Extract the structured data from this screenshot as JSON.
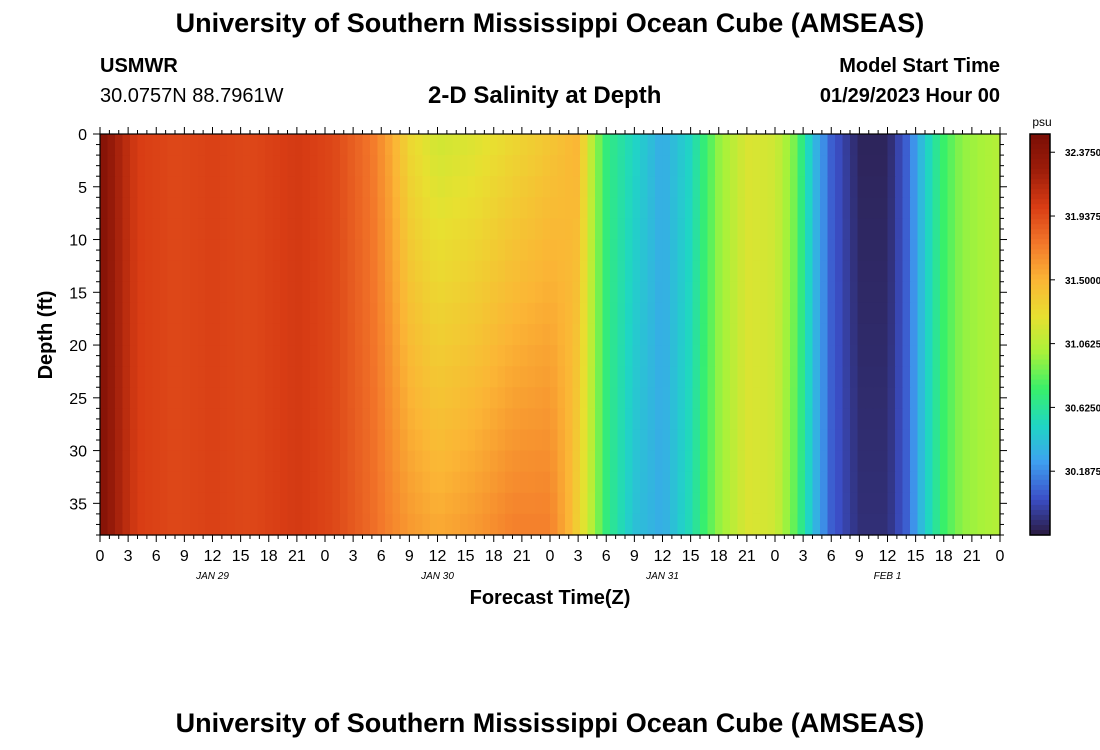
{
  "header": {
    "title": "University of Southern Mississippi Ocean Cube (AMSEAS)",
    "station_name": "USMWR",
    "station_coords": "30.0757N  88.7961W",
    "plot_title": "2-D Salinity at Depth",
    "model_start_label": "Model Start Time",
    "model_start_value": "01/29/2023 Hour 00"
  },
  "footer": {
    "title": "University of Southern Mississippi Ocean Cube (AMSEAS)"
  },
  "colors": {
    "palette": [
      "#2a1a40",
      "#3b4fc8",
      "#3ea0f0",
      "#1fd6c4",
      "#38f06a",
      "#a8f23a",
      "#e8e030",
      "#fbb535",
      "#f3772a",
      "#d83c14",
      "#9c1d0a",
      "#7a0e05"
    ]
  },
  "chart_data": {
    "type": "heatmap",
    "xlabel": "Forecast Time(Z)",
    "ylabel": "Depth (ft)",
    "x_ticks": [
      "0",
      "3",
      "6",
      "9",
      "12",
      "15",
      "18",
      "21",
      "0",
      "3",
      "6",
      "9",
      "12",
      "15",
      "18",
      "21",
      "0",
      "3",
      "6",
      "9",
      "12",
      "15",
      "18",
      "21",
      "0",
      "3",
      "6",
      "9",
      "12",
      "15",
      "18",
      "21",
      "0"
    ],
    "day_labels": [
      "JAN 29",
      "JAN 30",
      "JAN 31",
      "FEB 1"
    ],
    "x_range_hours": [
      0,
      96
    ],
    "y_ticks": [
      "0",
      "5",
      "10",
      "15",
      "20",
      "25",
      "30",
      "35"
    ],
    "y_range_ft": [
      0,
      38
    ],
    "colorbar": {
      "unit": "psu",
      "range": [
        29.75,
        32.5
      ],
      "tick_labels": [
        "32.3750",
        "31.9375",
        "31.5000",
        "31.0625",
        "30.6250",
        "30.1875"
      ],
      "tick_values": [
        32.375,
        31.9375,
        31.5,
        31.0625,
        30.625,
        30.1875
      ]
    },
    "surface_profile_psu": [
      [
        0,
        32.45
      ],
      [
        2,
        32.2
      ],
      [
        4,
        32.0
      ],
      [
        8,
        31.95
      ],
      [
        12,
        31.98
      ],
      [
        16,
        31.95
      ],
      [
        21,
        32.02
      ],
      [
        25,
        31.95
      ],
      [
        29,
        31.75
      ],
      [
        31,
        31.55
      ],
      [
        33,
        31.3
      ],
      [
        36,
        31.15
      ],
      [
        40,
        31.2
      ],
      [
        44,
        31.3
      ],
      [
        48,
        31.4
      ],
      [
        51,
        31.5
      ],
      [
        52.5,
        31.05
      ],
      [
        54,
        30.7
      ],
      [
        57,
        30.5
      ],
      [
        60,
        30.3
      ],
      [
        63,
        30.5
      ],
      [
        66,
        30.95
      ],
      [
        69,
        31.2
      ],
      [
        72,
        31.15
      ],
      [
        74,
        30.9
      ],
      [
        76,
        30.4
      ],
      [
        78,
        30.05
      ],
      [
        81,
        29.8
      ],
      [
        84,
        29.8
      ],
      [
        86,
        30.05
      ],
      [
        88,
        30.45
      ],
      [
        90,
        30.75
      ],
      [
        92,
        30.95
      ],
      [
        96,
        31.05
      ]
    ],
    "bottom_profile_psu": [
      [
        0,
        32.45
      ],
      [
        2,
        32.2
      ],
      [
        4,
        32.0
      ],
      [
        8,
        31.95
      ],
      [
        12,
        31.98
      ],
      [
        16,
        31.95
      ],
      [
        21,
        32.02
      ],
      [
        25,
        31.95
      ],
      [
        29,
        31.8
      ],
      [
        31,
        31.7
      ],
      [
        33,
        31.62
      ],
      [
        36,
        31.55
      ],
      [
        40,
        31.62
      ],
      [
        44,
        31.72
      ],
      [
        48,
        31.72
      ],
      [
        50,
        31.5
      ],
      [
        52,
        31.15
      ],
      [
        54,
        30.7
      ],
      [
        57,
        30.4
      ],
      [
        60,
        30.3
      ],
      [
        63,
        30.55
      ],
      [
        66,
        30.95
      ],
      [
        69,
        31.2
      ],
      [
        72,
        31.15
      ],
      [
        74,
        30.85
      ],
      [
        76,
        30.4
      ],
      [
        78,
        30.05
      ],
      [
        81,
        29.85
      ],
      [
        84,
        29.85
      ],
      [
        86,
        30.05
      ],
      [
        88,
        30.45
      ],
      [
        90,
        30.75
      ],
      [
        92,
        30.95
      ],
      [
        96,
        31.05
      ]
    ]
  }
}
